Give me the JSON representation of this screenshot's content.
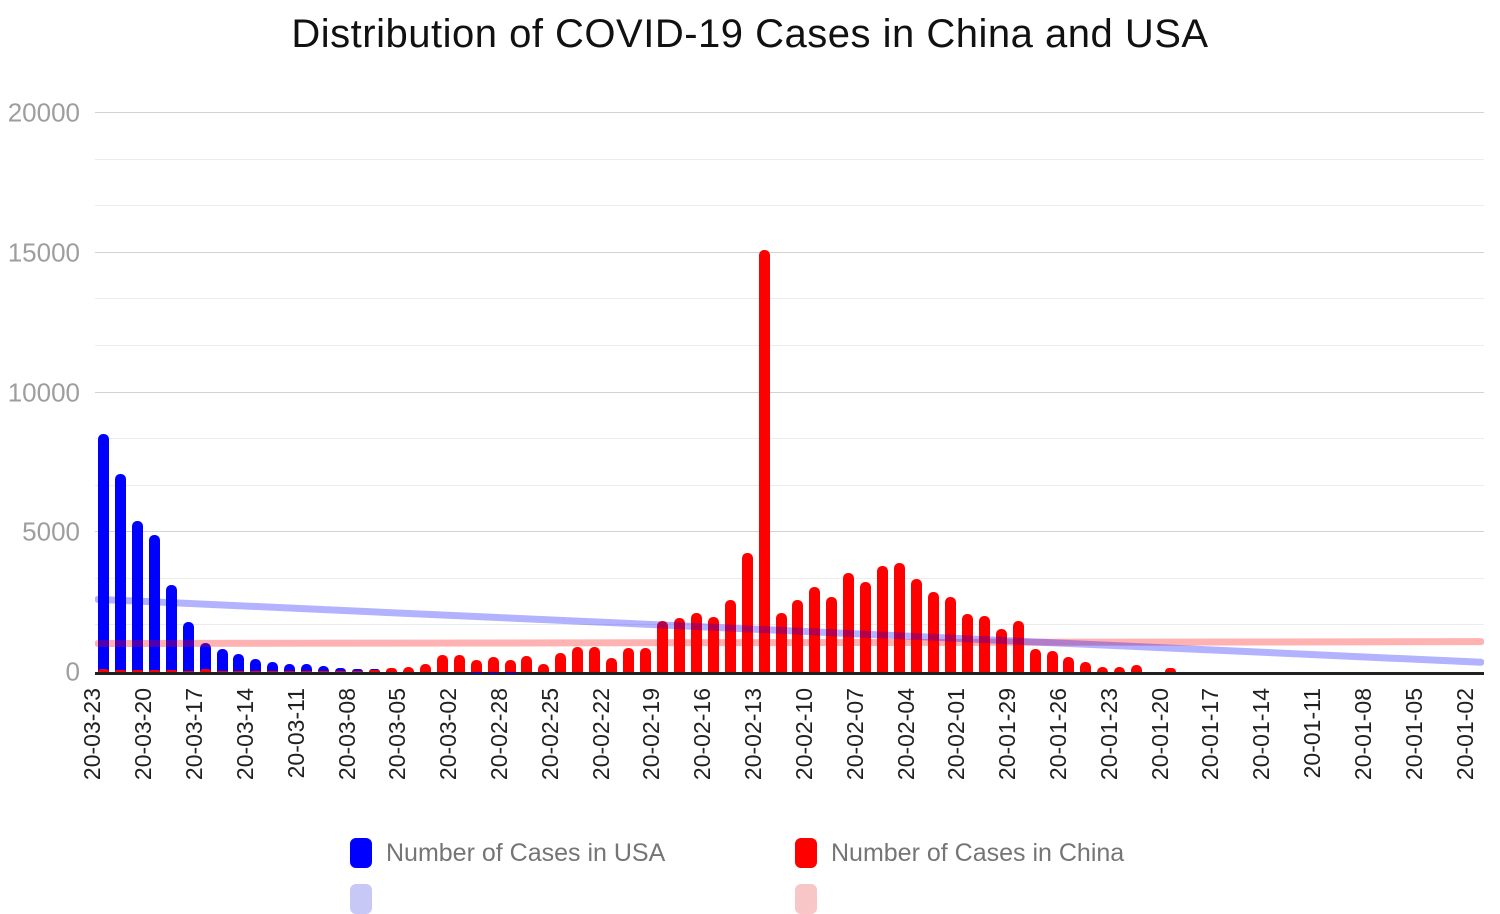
{
  "title": "Distribution of COVID-19 Cases in China and USA",
  "legend": {
    "items": [
      {
        "label": "Number of Cases in USA",
        "color": "#0000ff"
      },
      {
        "label": "Number of Cases in China",
        "color": "#ff0000"
      }
    ],
    "row2_colors": [
      "#c8c8f6",
      "#f8c6c6"
    ]
  },
  "chart_data": {
    "type": "bar",
    "title": "Distribution of COVID-19 Cases in China and USA",
    "x_axis_reversed": true,
    "grid": true,
    "legend_position": "bottom",
    "ylim": [
      0,
      20000
    ],
    "ytick_labels": [
      "0",
      "5000",
      "10000",
      "15000",
      "20000"
    ],
    "minor_gridline_step": 1666.67,
    "x_label_every": 3,
    "categories": [
      "20-03-23",
      "20-03-22",
      "20-03-21",
      "20-03-20",
      "20-03-19",
      "20-03-18",
      "20-03-17",
      "20-03-16",
      "20-03-15",
      "20-03-14",
      "20-03-13",
      "20-03-12",
      "20-03-11",
      "20-03-10",
      "20-03-09",
      "20-03-08",
      "20-03-07",
      "20-03-06",
      "20-03-05",
      "20-03-04",
      "20-03-03",
      "20-03-02",
      "20-03-01",
      "20-02-29",
      "20-02-28",
      "20-02-27",
      "20-02-26",
      "20-02-25",
      "20-02-24",
      "20-02-23",
      "20-02-22",
      "20-02-21",
      "20-02-20",
      "20-02-19",
      "20-02-18",
      "20-02-17",
      "20-02-16",
      "20-02-15",
      "20-02-14",
      "20-02-13",
      "20-02-12",
      "20-02-11",
      "20-02-10",
      "20-02-09",
      "20-02-08",
      "20-02-07",
      "20-02-06",
      "20-02-05",
      "20-02-04",
      "20-02-03",
      "20-02-02",
      "20-02-01",
      "20-01-31",
      "20-01-30",
      "20-01-29",
      "20-01-28",
      "20-01-27",
      "20-01-26",
      "20-01-25",
      "20-01-24",
      "20-01-23",
      "20-01-22",
      "20-01-21",
      "20-01-20",
      "20-01-19",
      "20-01-18",
      "20-01-17",
      "20-01-16",
      "20-01-15",
      "20-01-14",
      "20-01-13",
      "20-01-12",
      "20-01-11",
      "20-01-10",
      "20-01-09",
      "20-01-08",
      "20-01-07",
      "20-01-06",
      "20-01-05",
      "20-01-04",
      "20-01-03",
      "20-01-02"
    ],
    "series": [
      {
        "name": "Number of Cases in USA",
        "color": "#0000ff",
        "values": [
          8500,
          7100,
          5400,
          4900,
          3100,
          1800,
          1050,
          820,
          650,
          480,
          350,
          300,
          280,
          230,
          130,
          100,
          110,
          90,
          70,
          40,
          25,
          25,
          10,
          10,
          5,
          0,
          0,
          0,
          0,
          0,
          0,
          0,
          0,
          0,
          0,
          0,
          0,
          0,
          0,
          0,
          0,
          0,
          0,
          0,
          0,
          0,
          0,
          0,
          0,
          0,
          0,
          0,
          0,
          0,
          0,
          0,
          0,
          0,
          0,
          0,
          0,
          0,
          0,
          0,
          0,
          0,
          0,
          0,
          0,
          0,
          0,
          0,
          0,
          0,
          0,
          0,
          0,
          0,
          0,
          0,
          0,
          0
        ]
      },
      {
        "name": "Number of Cases in China",
        "color": "#ff0000",
        "values": [
          120,
          70,
          80,
          70,
          60,
          50,
          100,
          40,
          30,
          40,
          20,
          20,
          30,
          30,
          50,
          50,
          60,
          140,
          180,
          300,
          600,
          600,
          420,
          540,
          430,
          570,
          280,
          690,
          900,
          900,
          500,
          850,
          850,
          1835,
          1930,
          2120,
          1980,
          2580,
          4270,
          15100,
          2120,
          2580,
          3050,
          2670,
          3530,
          3230,
          3800,
          3915,
          3320,
          2870,
          2670,
          2075,
          2000,
          1530,
          1835,
          810,
          765,
          540,
          350,
          170,
          170,
          250,
          0,
          145,
          0,
          0,
          0,
          0,
          0,
          0,
          0,
          0,
          0,
          0,
          0,
          0,
          0,
          0,
          0,
          0,
          0,
          0
        ]
      }
    ],
    "trendlines": [
      {
        "name": "china-trendline",
        "series": "Number of Cases in China",
        "color": "rgba(255,0,0,0.3)",
        "start_value": 1020,
        "end_value": 1085
      },
      {
        "name": "usa-trendline",
        "series": "Number of Cases in USA",
        "color": "rgba(0,0,255,0.3)",
        "start_value": 2600,
        "end_value": 350
      }
    ]
  }
}
